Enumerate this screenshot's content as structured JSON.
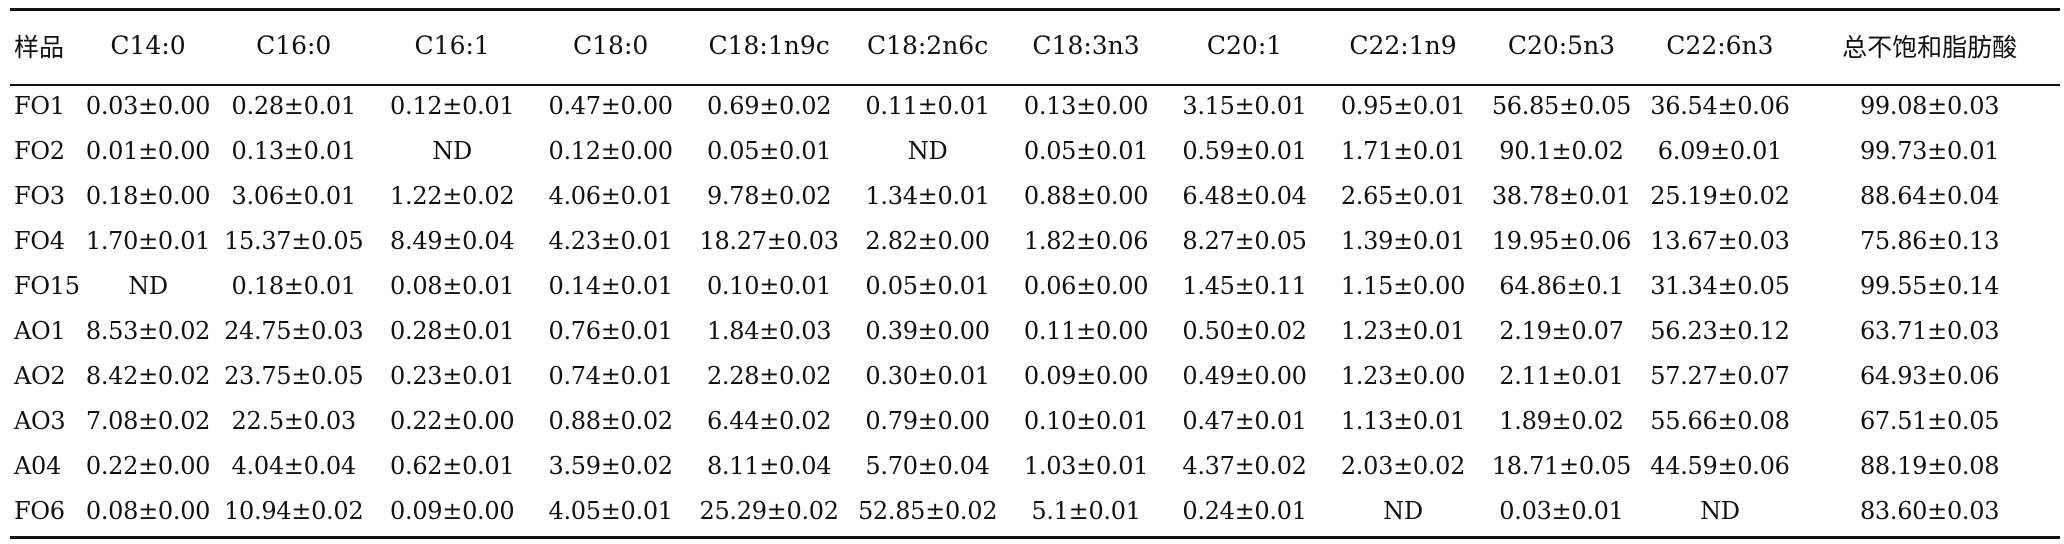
{
  "table": {
    "headers": [
      "样品",
      "C14:0",
      "C16:0",
      "C16:1",
      "C18:0",
      "C18:1n9c",
      "C18:2n6c",
      "C18:3n3",
      "C20:1",
      "C22:1n9",
      "C20:5n3",
      "C22:6n3",
      "总不饱和脂肪酸"
    ],
    "rows": [
      [
        "FO1",
        "0.03±0.00",
        "0.28±0.01",
        "0.12±0.01",
        "0.47±0.00",
        "0.69±0.02",
        "0.11±0.01",
        "0.13±0.00",
        "3.15±0.01",
        "0.95±0.01",
        "56.85±0.05",
        "36.54±0.06",
        "99.08±0.03"
      ],
      [
        "FO2",
        "0.01±0.00",
        "0.13±0.01",
        "ND",
        "0.12±0.00",
        "0.05±0.01",
        "ND",
        "0.05±0.01",
        "0.59±0.01",
        "1.71±0.01",
        "90.1±0.02",
        "6.09±0.01",
        "99.73±0.01"
      ],
      [
        "FO3",
        "0.18±0.00",
        "3.06±0.01",
        "1.22±0.02",
        "4.06±0.01",
        "9.78±0.02",
        "1.34±0.01",
        "0.88±0.00",
        "6.48±0.04",
        "2.65±0.01",
        "38.78±0.01",
        "25.19±0.02",
        "88.64±0.04"
      ],
      [
        "FO4",
        "1.70±0.01",
        "15.37±0.05",
        "8.49±0.04",
        "4.23±0.01",
        "18.27±0.03",
        "2.82±0.00",
        "1.82±0.06",
        "8.27±0.05",
        "1.39±0.01",
        "19.95±0.06",
        "13.67±0.03",
        "75.86±0.13"
      ],
      [
        "FO15",
        "ND",
        "0.18±0.01",
        "0.08±0.01",
        "0.14±0.01",
        "0.10±0.01",
        "0.05±0.01",
        "0.06±0.00",
        "1.45±0.11",
        "1.15±0.00",
        "64.86±0.1",
        "31.34±0.05",
        "99.55±0.14"
      ],
      [
        "AO1",
        "8.53±0.02",
        "24.75±0.03",
        "0.28±0.01",
        "0.76±0.01",
        "1.84±0.03",
        "0.39±0.00",
        "0.11±0.00",
        "0.50±0.02",
        "1.23±0.01",
        "2.19±0.07",
        "56.23±0.12",
        "63.71±0.03"
      ],
      [
        "AO2",
        "8.42±0.02",
        "23.75±0.05",
        "0.23±0.01",
        "0.74±0.01",
        "2.28±0.02",
        "0.30±0.01",
        "0.09±0.00",
        "0.49±0.00",
        "1.23±0.00",
        "2.11±0.01",
        "57.27±0.07",
        "64.93±0.06"
      ],
      [
        "AO3",
        "7.08±0.02",
        "22.5±0.03",
        "0.22±0.00",
        "0.88±0.02",
        "6.44±0.02",
        "0.79±0.00",
        "0.10±0.01",
        "0.47±0.01",
        "1.13±0.01",
        "1.89±0.02",
        "55.66±0.08",
        "67.51±0.05"
      ],
      [
        "A04",
        "0.22±0.00",
        "4.04±0.04",
        "0.62±0.01",
        "3.59±0.02",
        "8.11±0.04",
        "5.70±0.04",
        "1.03±0.01",
        "4.37±0.02",
        "2.03±0.02",
        "18.71±0.05",
        "44.59±0.06",
        "88.19±0.08"
      ],
      [
        "FO6",
        "0.08±0.00",
        "10.94±0.02",
        "0.09±0.00",
        "4.05±0.01",
        "25.29±0.02",
        "52.85±0.02",
        "5.1±0.01",
        "0.24±0.01",
        "ND",
        "0.03±0.01",
        "ND",
        "83.60±0.03"
      ]
    ]
  }
}
